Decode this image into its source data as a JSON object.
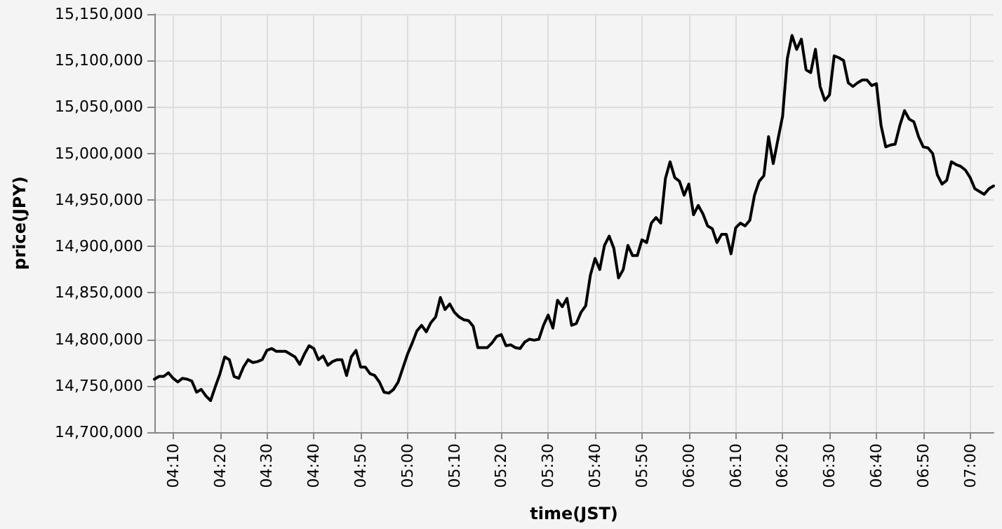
{
  "chart_data": {
    "type": "line",
    "xlabel": "time(JST)",
    "ylabel": "price(JPY)",
    "x": [
      4.1,
      4.1167,
      4.1333,
      4.15,
      4.1667,
      4.1833,
      4.2,
      4.2167,
      4.2333,
      4.25,
      4.2667,
      4.2833,
      4.3,
      4.3167,
      4.3333,
      4.35,
      4.3667,
      4.3833,
      4.4,
      4.4167,
      4.4333,
      4.45,
      4.4667,
      4.4833,
      4.5,
      4.5167,
      4.5333,
      4.55,
      4.5667,
      4.5833,
      4.6,
      4.6167,
      4.6333,
      4.65,
      4.6667,
      4.6833,
      4.7,
      4.7167,
      4.7333,
      4.75,
      4.7667,
      4.7833,
      4.8,
      4.8167,
      4.8333,
      4.85,
      4.8667,
      4.8833,
      4.9,
      4.9167,
      4.9333,
      4.95,
      4.9667,
      4.9833,
      5,
      5.0167,
      5.0333,
      5.05,
      5.0667,
      5.0833,
      5.1,
      5.1167,
      5.1333,
      5.15,
      5.1667,
      5.1833,
      5.2,
      5.2167,
      5.2333,
      5.25,
      5.2667,
      5.2833,
      5.3,
      5.3167,
      5.3333,
      5.35,
      5.3667,
      5.3833,
      5.4,
      5.4167,
      5.4333,
      5.45,
      5.4667,
      5.4833,
      5.5,
      5.5167,
      5.5333,
      5.55,
      5.5667,
      5.5833,
      5.6,
      5.6167,
      5.6333,
      5.65,
      5.6667,
      5.6833,
      5.7,
      5.7167,
      5.7333,
      5.75,
      5.7667,
      5.7833,
      5.8,
      5.8167,
      5.8333,
      5.85,
      5.8667,
      5.8833,
      5.9,
      5.9167,
      5.9333,
      5.95,
      5.9667,
      5.9833,
      6,
      6.0167,
      6.0333,
      6.05,
      6.0667,
      6.0833,
      6.1,
      6.1167,
      6.1333,
      6.15,
      6.1667,
      6.1833,
      6.2,
      6.2167,
      6.2333,
      6.25,
      6.2667,
      6.2833,
      6.3,
      6.3167,
      6.3333,
      6.35,
      6.3667,
      6.3833,
      6.4,
      6.4167,
      6.4333,
      6.45,
      6.4667,
      6.4833,
      6.5,
      6.5167,
      6.5333,
      6.55,
      6.5667,
      6.5833,
      6.6,
      6.6167,
      6.6333,
      6.65,
      6.6667,
      6.6833,
      6.7,
      6.7167,
      6.7333,
      6.75,
      6.7667,
      6.7833,
      6.8,
      6.8167,
      6.8333,
      6.85,
      6.8667,
      6.8833,
      6.9,
      6.9167,
      6.9333,
      6.95,
      6.9667,
      6.9833,
      7,
      7.0167,
      7.0333,
      7.05,
      7.0667,
      7.0833
    ],
    "series": [
      {
        "color": "#000000",
        "values": [
          14757000,
          14760000,
          14760000,
          14764000,
          14758000,
          14754000,
          14758000,
          14757000,
          14755000,
          14743000,
          14746000,
          14739000,
          14734000,
          14749000,
          14763000,
          14781000,
          14778000,
          14760000,
          14758000,
          14770000,
          14778000,
          14775000,
          14776000,
          14778000,
          14788000,
          14790000,
          14787000,
          14787000,
          14787000,
          14784000,
          14781000,
          14773000,
          14784000,
          14793000,
          14790000,
          14778000,
          14782000,
          14772000,
          14776000,
          14778000,
          14778000,
          14761000,
          14781000,
          14788000,
          14770000,
          14770000,
          14763000,
          14761000,
          14754000,
          14743000,
          14742000,
          14746000,
          14754000,
          14769000,
          14784000,
          14796000,
          14809000,
          14815000,
          14808000,
          14818000,
          14824000,
          14845000,
          14832000,
          14838000,
          14829000,
          14824000,
          14821000,
          14820000,
          14814000,
          14791000,
          14791000,
          14791000,
          14796000,
          14803000,
          14805000,
          14793000,
          14794000,
          14791000,
          14790000,
          14797000,
          14800000,
          14799000,
          14800000,
          14815000,
          14826000,
          14812000,
          14842000,
          14835000,
          14844000,
          14815000,
          14817000,
          14829000,
          14836000,
          14869000,
          14887000,
          14875000,
          14901000,
          14911000,
          14898000,
          14866000,
          14875000,
          14901000,
          14890000,
          14890000,
          14907000,
          14904000,
          14925000,
          14931000,
          14925000,
          14973000,
          14991000,
          14974000,
          14970000,
          14955000,
          14967000,
          14934000,
          14944000,
          14935000,
          14922000,
          14919000,
          14904000,
          14913000,
          14913000,
          14892000,
          14920000,
          14925000,
          14922000,
          14928000,
          14955000,
          14970000,
          14976000,
          15018000,
          14989000,
          15015000,
          15040000,
          15102000,
          15127000,
          15112000,
          15123000,
          15090000,
          15087000,
          15112000,
          15072000,
          15057000,
          15063000,
          15105000,
          15103000,
          15100000,
          15076000,
          15072000,
          15076000,
          15079000,
          15079000,
          15073000,
          15075000,
          15030000,
          15007000,
          15009000,
          15010000,
          15030000,
          15046000,
          15037000,
          15034000,
          15018000,
          15007000,
          15006000,
          15000000,
          14977000,
          14967000,
          14971000,
          14991000,
          14988000,
          14986000,
          14982000,
          14974000,
          14962000,
          14959000,
          14956000,
          14962000,
          14965000
        ]
      }
    ],
    "xlim": [
      4.1,
      7.0833
    ],
    "xticks": [
      {
        "value": 4.1667,
        "label": "04:10"
      },
      {
        "value": 4.3333,
        "label": "04:20"
      },
      {
        "value": 4.5,
        "label": "04:30"
      },
      {
        "value": 4.6667,
        "label": "04:40"
      },
      {
        "value": 4.8333,
        "label": "04:50"
      },
      {
        "value": 5,
        "label": "05:00"
      },
      {
        "value": 5.1667,
        "label": "05:10"
      },
      {
        "value": 5.3333,
        "label": "05:20"
      },
      {
        "value": 5.5,
        "label": "05:30"
      },
      {
        "value": 5.6667,
        "label": "05:40"
      },
      {
        "value": 5.8333,
        "label": "05:50"
      },
      {
        "value": 6,
        "label": "06:00"
      },
      {
        "value": 6.1667,
        "label": "06:10"
      },
      {
        "value": 6.3333,
        "label": "06:20"
      },
      {
        "value": 6.5,
        "label": "06:30"
      },
      {
        "value": 6.6667,
        "label": "06:40"
      },
      {
        "value": 6.8333,
        "label": "06:50"
      },
      {
        "value": 7,
        "label": "07:00"
      }
    ],
    "ylim": [
      14700000,
      15150000
    ],
    "yticks": [
      {
        "value": 14700000,
        "label": "14,700,000"
      },
      {
        "value": 14750000,
        "label": "14,750,000"
      },
      {
        "value": 14800000,
        "label": "14,800,000"
      },
      {
        "value": 14850000,
        "label": "14,850,000"
      },
      {
        "value": 14900000,
        "label": "14,900,000"
      },
      {
        "value": 14950000,
        "label": "14,950,000"
      },
      {
        "value": 15000000,
        "label": "15,000,000"
      },
      {
        "value": 15050000,
        "label": "15,050,000"
      },
      {
        "value": 15100000,
        "label": "15,100,000"
      },
      {
        "value": 15150000,
        "label": "15,150,000"
      }
    ],
    "grid": true,
    "marker": "none",
    "line_style": "solid"
  }
}
